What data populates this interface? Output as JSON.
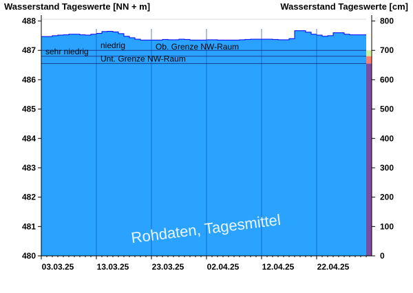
{
  "chart_data": {
    "type": "area",
    "left_axis_title": "Wasserstand Tageswerte [NN + m]",
    "right_axis_title": "Wasserstand Tageswerte [cm]",
    "ylim": [
      480,
      488.2
    ],
    "y_ticks": [
      "480",
      "481",
      "482",
      "483",
      "484",
      "485",
      "486",
      "487",
      "488"
    ],
    "ylim_right": [
      0,
      820
    ],
    "y_ticks_right": [
      "0",
      "100",
      "200",
      "300",
      "400",
      "500",
      "600",
      "700",
      "800"
    ],
    "x_tick_labels": [
      "03.03.25",
      "13.03.25",
      "23.03.25",
      "02.04.25",
      "12.04.25",
      "22.04.25"
    ],
    "series": [
      {
        "x": [
          "03.03.25",
          "04.03.25",
          "05.03.25",
          "06.03.25",
          "07.03.25",
          "08.03.25",
          "09.03.25",
          "10.03.25",
          "11.03.25",
          "12.03.25",
          "13.03.25",
          "14.03.25",
          "15.03.25",
          "16.03.25",
          "17.03.25",
          "18.03.25",
          "19.03.25",
          "20.03.25",
          "21.03.25",
          "22.03.25",
          "23.03.25",
          "24.03.25",
          "25.03.25",
          "26.03.25",
          "27.03.25",
          "28.03.25",
          "29.03.25",
          "30.03.25",
          "31.03.25",
          "01.04.25",
          "02.04.25",
          "03.04.25",
          "04.04.25",
          "05.04.25",
          "06.04.25",
          "07.04.25",
          "08.04.25",
          "09.04.25",
          "10.04.25",
          "11.04.25",
          "12.04.25",
          "13.04.25",
          "14.04.25",
          "15.04.25",
          "16.04.25",
          "17.04.25",
          "18.04.25",
          "19.04.25",
          "20.04.25",
          "21.04.25",
          "22.04.25",
          "23.04.25",
          "24.04.25",
          "25.04.25",
          "26.04.25",
          "27.04.25",
          "28.04.25",
          "29.04.25",
          "30.04.25"
        ],
        "values": [
          487.47,
          487.47,
          487.5,
          487.52,
          487.53,
          487.55,
          487.55,
          487.53,
          487.52,
          487.55,
          487.58,
          487.64,
          487.65,
          487.63,
          487.57,
          487.48,
          487.43,
          487.38,
          487.35,
          487.35,
          487.35,
          487.35,
          487.37,
          487.36,
          487.36,
          487.38,
          487.37,
          487.35,
          487.35,
          487.35,
          487.36,
          487.36,
          487.35,
          487.35,
          487.35,
          487.35,
          487.36,
          487.37,
          487.38,
          487.38,
          487.38,
          487.38,
          487.37,
          487.36,
          487.36,
          487.4,
          487.67,
          487.67,
          487.62,
          487.55,
          487.52,
          487.48,
          487.5,
          487.6,
          487.6,
          487.55,
          487.53,
          487.53,
          487.53
        ]
      }
    ],
    "levels": [
      {
        "label": "niedrig",
        "value": 487.0
      },
      {
        "label": "Ob. Grenze NW-Raum",
        "value": 487.0
      },
      {
        "label": "sehr niedrig",
        "value": 486.8
      },
      {
        "label": "Unt. Grenze NW-Raum",
        "value": 486.55
      }
    ],
    "watermark": "Rohdaten, Tagesmittel",
    "colors": {
      "area": "#29a3ff",
      "line": "#0000ff",
      "grid": "#1a4fb4",
      "band_top": "#ffffff",
      "band_green": "#c8f0a0",
      "band_red": "#ff7f6e",
      "band_purple": "#7a4ea0"
    }
  }
}
